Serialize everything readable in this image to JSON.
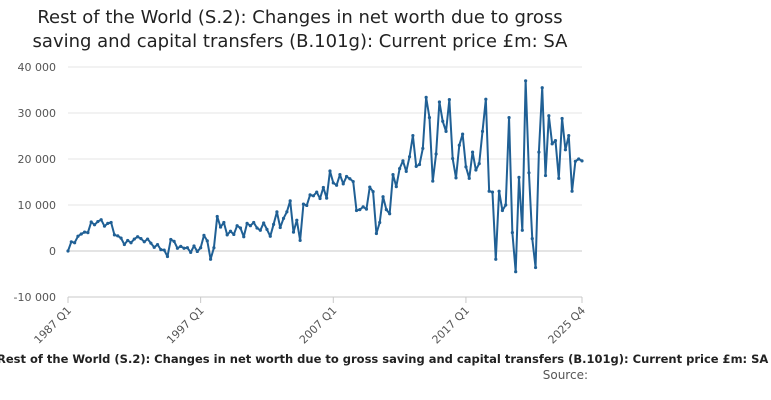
{
  "title_lines": [
    "Rest of the World (S.2): Changes in net worth due to gross",
    "saving and capital transfers (B.101g): Current price £m: SA"
  ],
  "footer": {
    "caption": "Rest of the World (S.2): Changes in net worth due to gross saving and capital transfers (B.101g): Current price £m: SA",
    "source": "Source:"
  },
  "chart_data": {
    "type": "line",
    "title": "Rest of the World (S.2): Changes in net worth due to gross saving and capital transfers (B.101g): Current price £m: SA",
    "xlabel": "",
    "ylabel": "",
    "ylim": [
      -10000,
      40000
    ],
    "y_ticks": [
      -10000,
      0,
      10000,
      20000,
      30000,
      40000
    ],
    "y_tick_labels": [
      "-10 000",
      "0",
      "10 000",
      "20 000",
      "30 000",
      "40 000"
    ],
    "x_tick_labels": [
      "1987 Q1",
      "1997 Q1",
      "2007 Q1",
      "2017 Q1",
      "2025 Q4"
    ],
    "x_tick_indices": [
      0,
      40,
      80,
      120,
      155
    ],
    "grid": true,
    "line_color": "#206095",
    "series": [
      {
        "name": "Rest of the World (S.2) B.101g",
        "values": [
          0,
          2000,
          1800,
          3200,
          3700,
          4100,
          4000,
          6300,
          5700,
          6400,
          6800,
          5400,
          6000,
          6200,
          3500,
          3300,
          2800,
          1400,
          2300,
          1800,
          2600,
          3100,
          2700,
          2000,
          2600,
          1700,
          800,
          1400,
          300,
          200,
          -1200,
          2500,
          2100,
          600,
          1000,
          600,
          700,
          -300,
          1100,
          -100,
          700,
          3400,
          2200,
          -1800,
          700,
          7500,
          5200,
          6200,
          3500,
          4300,
          3600,
          5500,
          5000,
          3100,
          6000,
          5500,
          6200,
          5000,
          4500,
          6100,
          4700,
          3200,
          5800,
          8500,
          5100,
          7100,
          8500,
          10900,
          4100,
          6700,
          2300,
          10200,
          9900,
          12200,
          12000,
          12800,
          11400,
          13800,
          11500,
          17400,
          14800,
          14300,
          16600,
          14600,
          16200,
          15700,
          15100,
          8800,
          9000,
          9600,
          9100,
          13900,
          12900,
          3800,
          6200,
          11800,
          9000,
          8100,
          16600,
          14000,
          17900,
          19600,
          17300,
          20500,
          25100,
          18400,
          18800,
          22300,
          33400,
          29000,
          15200,
          21100,
          32400,
          28200,
          26000,
          32900,
          20100,
          15900,
          23000,
          25400,
          18300,
          15800,
          21500,
          17600,
          19000,
          26000,
          33000,
          13000,
          12800,
          -1800,
          13000,
          8800,
          10000,
          29000,
          4000,
          -4500,
          16000,
          4500,
          37000,
          17000,
          2700,
          -3600,
          21500,
          35500,
          16400,
          29400,
          23300,
          24000,
          15800,
          28800,
          22000,
          25100,
          13000,
          19500,
          20000,
          19600
        ]
      }
    ]
  }
}
